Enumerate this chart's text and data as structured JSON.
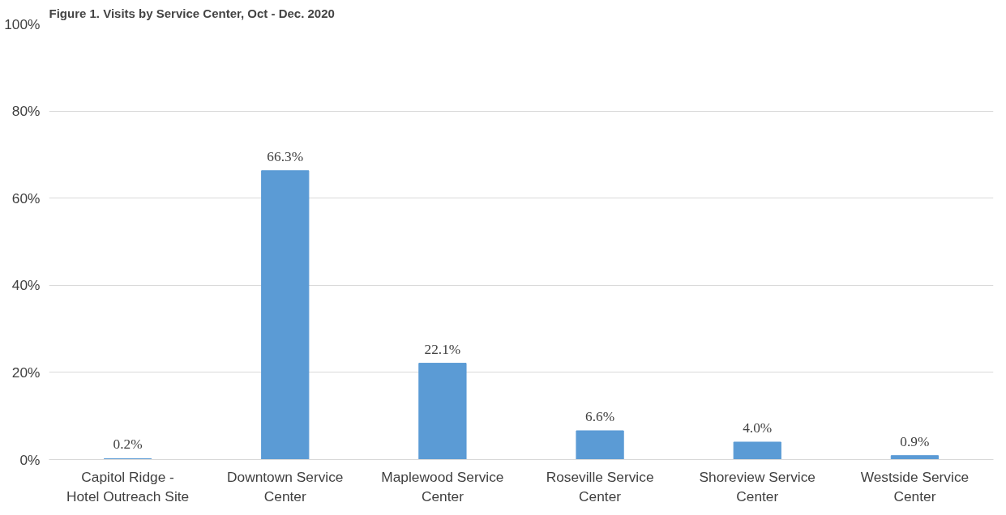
{
  "chart_data": {
    "type": "bar",
    "title": "Figure 1. Visits by Service Center, Oct - Dec. 2020",
    "categories": [
      "Capitol Ridge - Hotel Outreach Site",
      "Downtown Service Center",
      "Maplewood Service Center",
      "Roseville Service Center",
      "Shoreview Service Center",
      "Westside Service Center"
    ],
    "values": [
      0.2,
      66.3,
      22.1,
      6.6,
      4.0,
      0.9
    ],
    "value_labels": [
      "0.2%",
      "66.3%",
      "22.1%",
      "6.6%",
      "4.0%",
      "0.9%"
    ],
    "color": "#5b9bd5",
    "ylim": [
      0,
      100
    ],
    "yticks": [
      {
        "value": 0,
        "label": "0%"
      },
      {
        "value": 20,
        "label": "20%"
      },
      {
        "value": 40,
        "label": "40%"
      },
      {
        "value": 60,
        "label": "60%"
      },
      {
        "value": 80,
        "label": "80%"
      },
      {
        "value": 100,
        "label": "100%"
      }
    ],
    "grid": "y"
  }
}
